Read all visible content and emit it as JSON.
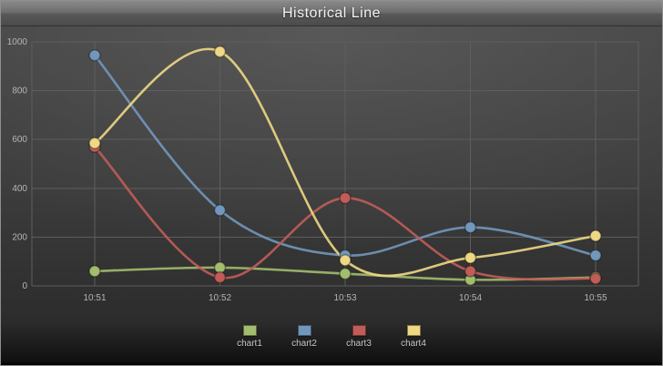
{
  "window": {
    "title": "Historical Line"
  },
  "chart_data": {
    "type": "line",
    "title": "Historical Line",
    "categories": [
      "10:51",
      "10:52",
      "10:53",
      "10:54",
      "10:55"
    ],
    "series": [
      {
        "name": "chart1",
        "color": "#a2bd6e",
        "values": [
          60,
          75,
          50,
          25,
          35
        ]
      },
      {
        "name": "chart2",
        "color": "#7297bd",
        "values": [
          945,
          310,
          125,
          240,
          125
        ]
      },
      {
        "name": "chart3",
        "color": "#c05d59",
        "values": [
          570,
          35,
          360,
          60,
          30
        ]
      },
      {
        "name": "chart4",
        "color": "#eed884",
        "values": [
          585,
          960,
          105,
          115,
          205
        ]
      }
    ],
    "ylim": [
      0,
      1000
    ],
    "yticks": [
      0,
      200,
      400,
      600,
      800,
      1000
    ],
    "ytick_labels": [
      "0",
      "200",
      "400",
      "600",
      "800",
      "1000"
    ],
    "grid": true,
    "legend_position": "bottom",
    "colors": {
      "grid": "#5e5e5e",
      "tick_text": "#b5b5b5",
      "marker_edge": "rgba(0,0,0,0.35)"
    }
  }
}
